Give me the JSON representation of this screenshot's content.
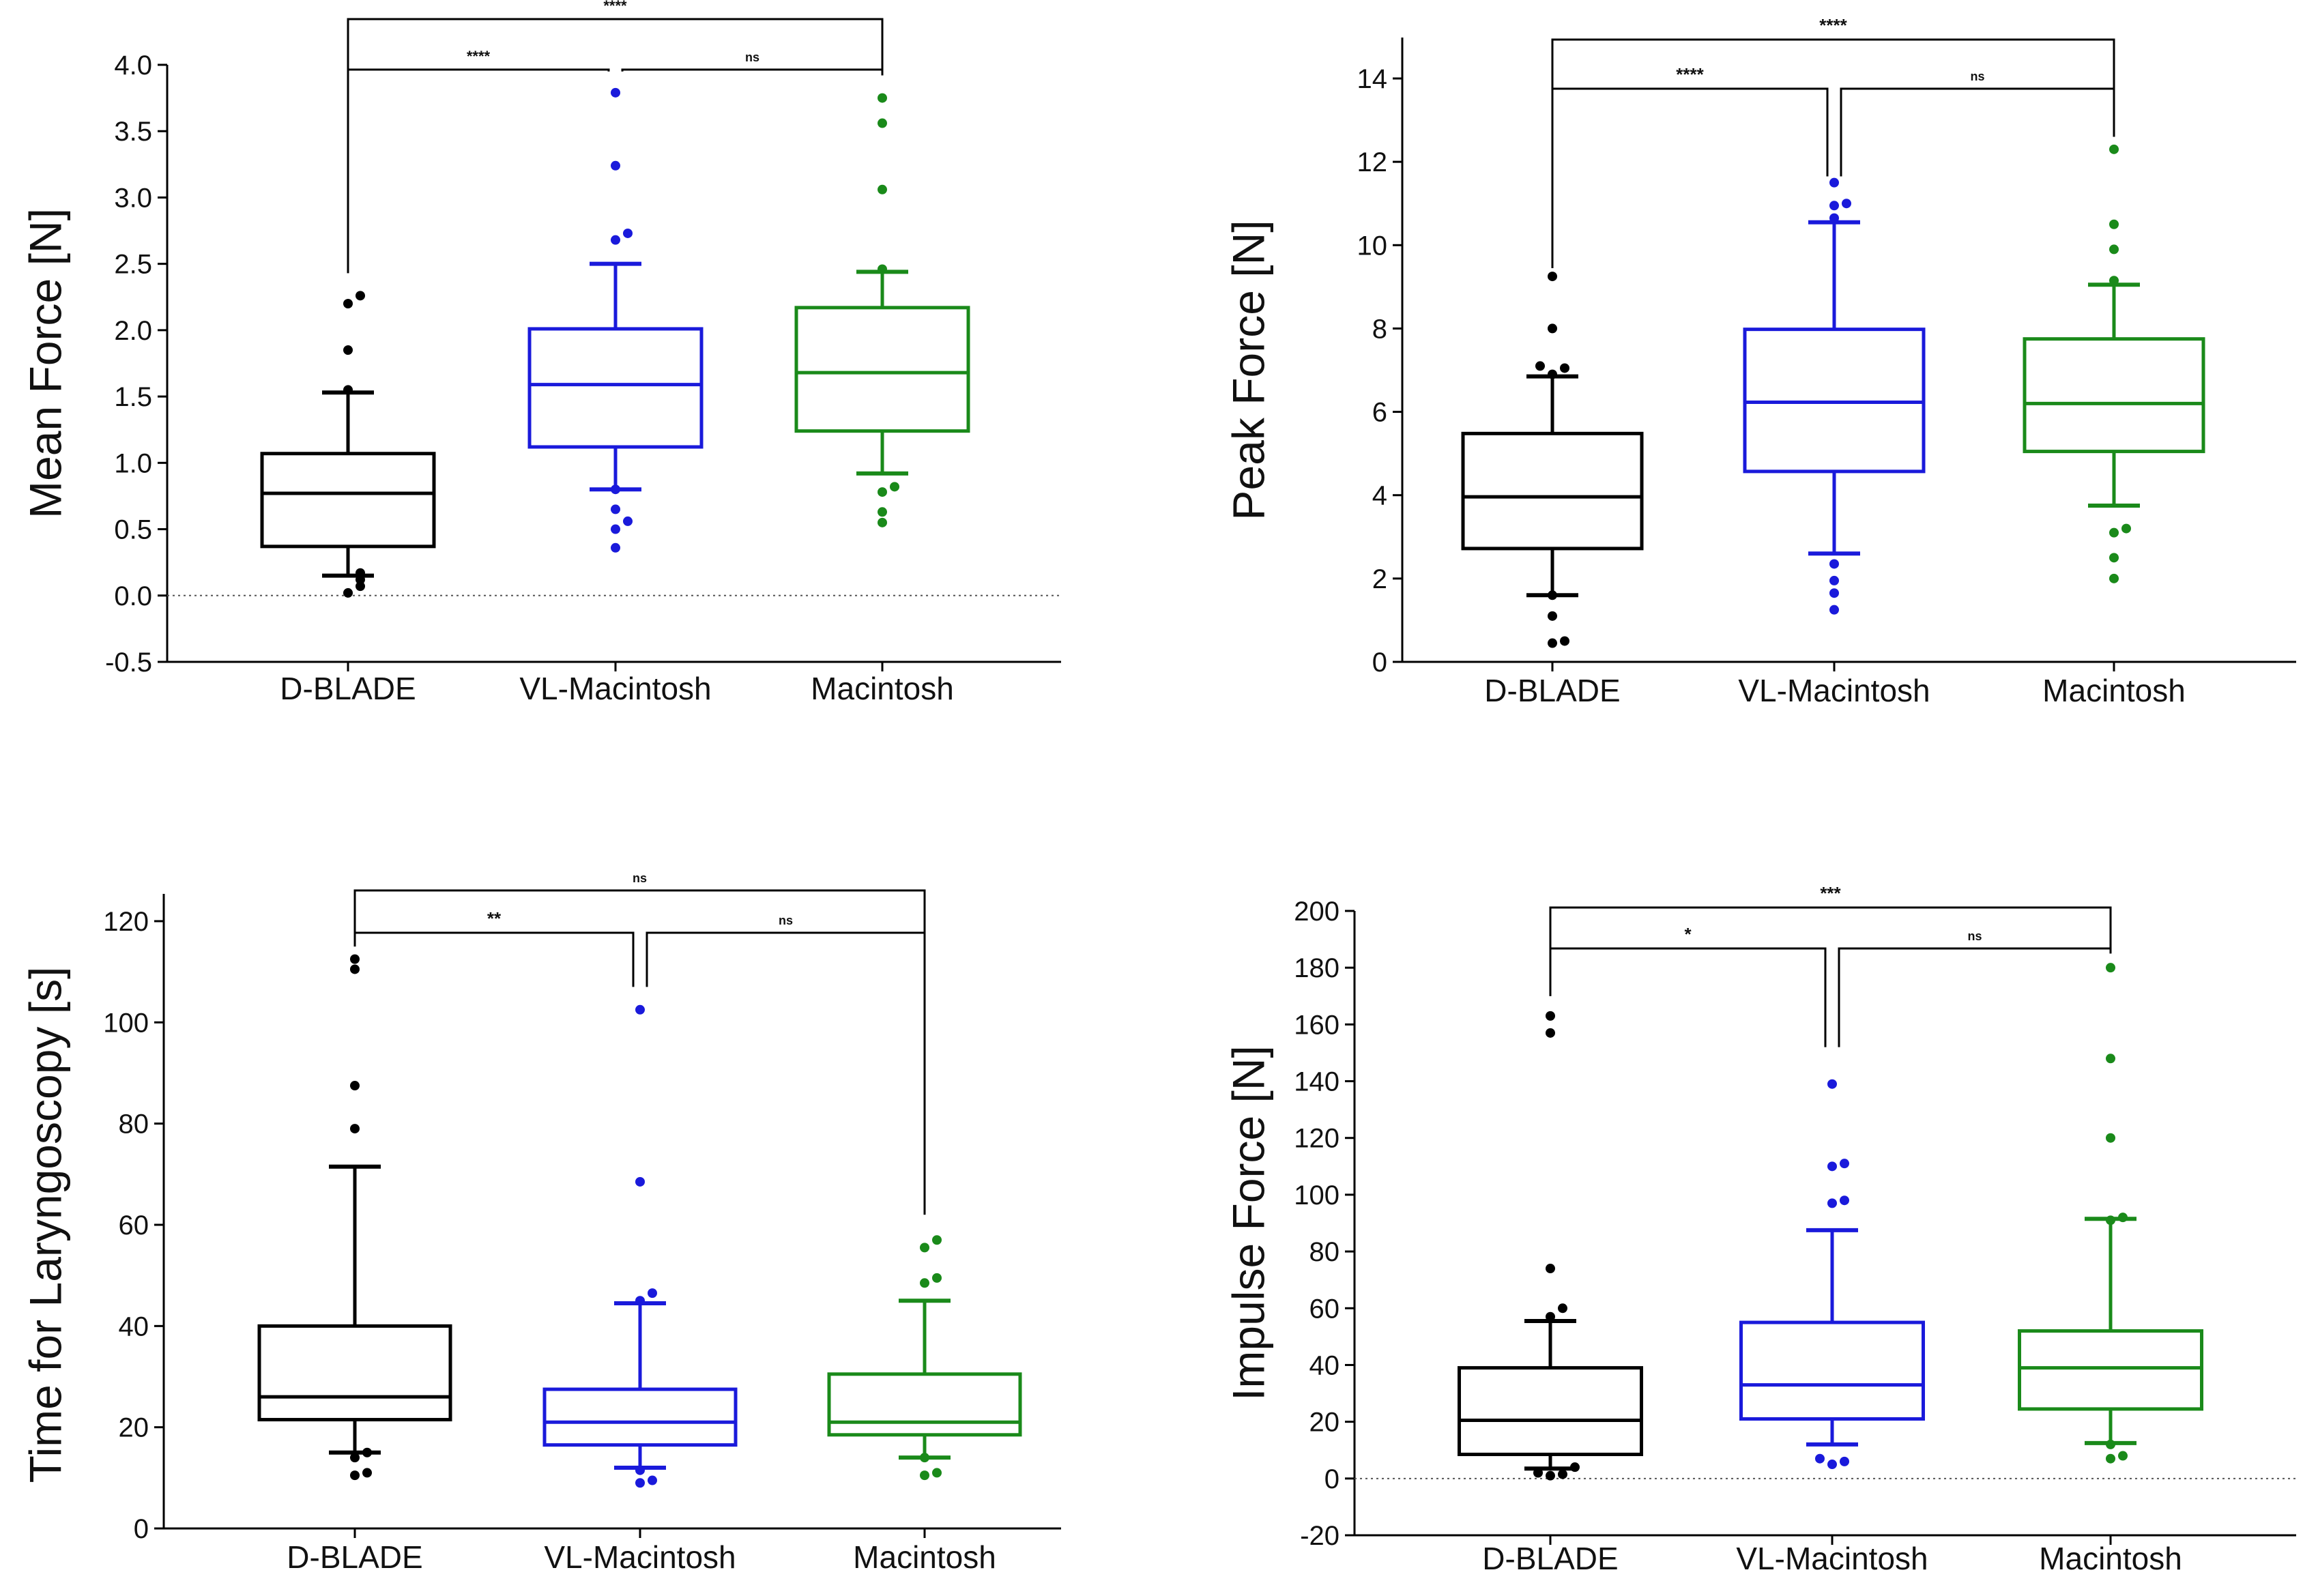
{
  "chart_data": [
    {
      "type": "box",
      "ylabel": "Mean Force [N]",
      "ylim": [
        -0.5,
        4.0
      ],
      "yticks": [
        -0.5,
        0.0,
        0.5,
        1.0,
        1.5,
        2.0,
        2.5,
        3.0,
        3.5,
        4.0
      ],
      "ytick_labels": [
        "-0.5",
        "0.0",
        "0.5",
        "1.0",
        "1.5",
        "2.0",
        "2.5",
        "3.0",
        "3.5",
        "4.0"
      ],
      "zero_line": true,
      "categories": [
        "D-BLADE",
        "VL-Macintosh",
        "Macintosh"
      ],
      "boxes": [
        {
          "name": "D-BLADE",
          "color": "#000000",
          "whisker_low": 0.15,
          "q1": 0.37,
          "median": 0.77,
          "q3": 1.07,
          "whisker_high": 1.53,
          "outliers": [
            0.02,
            0.07,
            0.12,
            0.17,
            1.55,
            1.85,
            2.2,
            2.26
          ]
        },
        {
          "name": "VL-Macintosh",
          "color": "#1a1adb",
          "whisker_low": 0.8,
          "q1": 1.12,
          "median": 1.59,
          "q3": 2.01,
          "whisker_high": 2.5,
          "outliers": [
            0.36,
            0.5,
            0.56,
            0.65,
            0.8,
            2.68,
            2.73,
            3.24,
            3.79
          ]
        },
        {
          "name": "Macintosh",
          "color": "#1a8a1a",
          "whisker_low": 0.92,
          "q1": 1.24,
          "median": 1.68,
          "q3": 2.17,
          "whisker_high": 2.44,
          "outliers": [
            0.55,
            0.63,
            0.78,
            0.82,
            2.46,
            3.06,
            3.56,
            3.75
          ]
        }
      ],
      "significance": [
        {
          "from": 0,
          "to": 2,
          "label": "****"
        },
        {
          "from": 0,
          "to": 1,
          "label": "****"
        },
        {
          "from": 1,
          "to": 2,
          "label": "ns"
        }
      ]
    },
    {
      "type": "box",
      "ylabel": "Peak Force [N]",
      "ylim": [
        0,
        15
      ],
      "yticks": [
        0,
        2,
        4,
        6,
        8,
        10,
        12,
        14
      ],
      "ytick_labels": [
        "0",
        "2",
        "4",
        "6",
        "8",
        "10",
        "12",
        "14"
      ],
      "zero_line": false,
      "categories": [
        "D-BLADE",
        "VL-Macintosh",
        "Macintosh"
      ],
      "boxes": [
        {
          "name": "D-BLADE",
          "color": "#000000",
          "whisker_low": 1.6,
          "q1": 2.72,
          "median": 3.96,
          "q3": 5.48,
          "whisker_high": 6.85,
          "outliers": [
            0.45,
            0.5,
            1.1,
            1.6,
            6.9,
            7.05,
            7.1,
            8.0,
            9.25
          ]
        },
        {
          "name": "VL-Macintosh",
          "color": "#1a1adb",
          "whisker_low": 2.6,
          "q1": 4.57,
          "median": 6.23,
          "q3": 7.98,
          "whisker_high": 10.55,
          "outliers": [
            1.25,
            1.65,
            1.95,
            2.35,
            10.65,
            10.95,
            11.0,
            11.5
          ]
        },
        {
          "name": "Macintosh",
          "color": "#1a8a1a",
          "whisker_low": 3.75,
          "q1": 5.05,
          "median": 6.2,
          "q3": 7.75,
          "whisker_high": 9.05,
          "outliers": [
            2.0,
            2.5,
            3.1,
            3.2,
            9.15,
            9.9,
            10.5,
            12.3
          ]
        }
      ],
      "significance": [
        {
          "from": 0,
          "to": 2,
          "label": "****"
        },
        {
          "from": 0,
          "to": 1,
          "label": "****"
        },
        {
          "from": 1,
          "to": 2,
          "label": "ns"
        }
      ]
    },
    {
      "type": "box",
      "ylabel": "Time for Laryngoscopy [s]",
      "ylim": [
        0,
        125
      ],
      "yticks": [
        0,
        20,
        40,
        60,
        80,
        100,
        120
      ],
      "ytick_labels": [
        "0",
        "20",
        "40",
        "60",
        "80",
        "100",
        "120"
      ],
      "zero_line": false,
      "categories": [
        "D-BLADE",
        "VL-Macintosh",
        "Macintosh"
      ],
      "boxes": [
        {
          "name": "D-BLADE",
          "color": "#000000",
          "whisker_low": 15,
          "q1": 21.5,
          "median": 26,
          "q3": 40,
          "whisker_high": 71.5,
          "outliers": [
            10.5,
            11,
            14,
            15,
            79,
            87.5,
            110.5,
            112.5
          ]
        },
        {
          "name": "VL-Macintosh",
          "color": "#1a1adb",
          "whisker_low": 12,
          "q1": 16.5,
          "median": 21,
          "q3": 27.5,
          "whisker_high": 44.5,
          "outliers": [
            9,
            9.5,
            11.5,
            45,
            46.5,
            68.5,
            102.5
          ]
        },
        {
          "name": "Macintosh",
          "color": "#1a8a1a",
          "whisker_low": 14,
          "q1": 18.5,
          "median": 21,
          "q3": 30.5,
          "whisker_high": 45,
          "outliers": [
            10.5,
            11,
            14,
            48.5,
            49.5,
            55.5,
            57
          ]
        }
      ],
      "significance": [
        {
          "from": 0,
          "to": 2,
          "label": "ns"
        },
        {
          "from": 0,
          "to": 1,
          "label": "**"
        },
        {
          "from": 1,
          "to": 2,
          "label": "ns"
        }
      ]
    },
    {
      "type": "box",
      "ylabel": "Impulse Force [N]",
      "ylim": [
        -20,
        200
      ],
      "yticks": [
        -20,
        0,
        20,
        40,
        60,
        80,
        100,
        120,
        140,
        160,
        180,
        200
      ],
      "ytick_labels": [
        "-20",
        "0",
        "20",
        "40",
        "60",
        "80",
        "100",
        "120",
        "140",
        "160",
        "180",
        "200"
      ],
      "zero_line": true,
      "categories": [
        "D-BLADE",
        "VL-Macintosh",
        "Macintosh"
      ],
      "boxes": [
        {
          "name": "D-BLADE",
          "color": "#000000",
          "whisker_low": 3.5,
          "q1": 8.5,
          "median": 20.5,
          "q3": 39,
          "whisker_high": 55.5,
          "outliers": [
            1,
            1.5,
            2,
            4,
            57,
            60,
            74,
            157,
            163
          ]
        },
        {
          "name": "VL-Macintosh",
          "color": "#1a1adb",
          "whisker_low": 12,
          "q1": 21,
          "median": 33,
          "q3": 55,
          "whisker_high": 87.5,
          "outliers": [
            5,
            6,
            7,
            97,
            98,
            110,
            111,
            139
          ]
        },
        {
          "name": "Macintosh",
          "color": "#1a8a1a",
          "whisker_low": 12.5,
          "q1": 24.5,
          "median": 39,
          "q3": 52,
          "whisker_high": 91.5,
          "outliers": [
            7,
            8,
            12,
            91,
            92,
            120,
            148,
            180
          ]
        }
      ],
      "significance": [
        {
          "from": 0,
          "to": 2,
          "label": "***"
        },
        {
          "from": 0,
          "to": 1,
          "label": "*"
        },
        {
          "from": 1,
          "to": 2,
          "label": "ns"
        }
      ]
    }
  ]
}
